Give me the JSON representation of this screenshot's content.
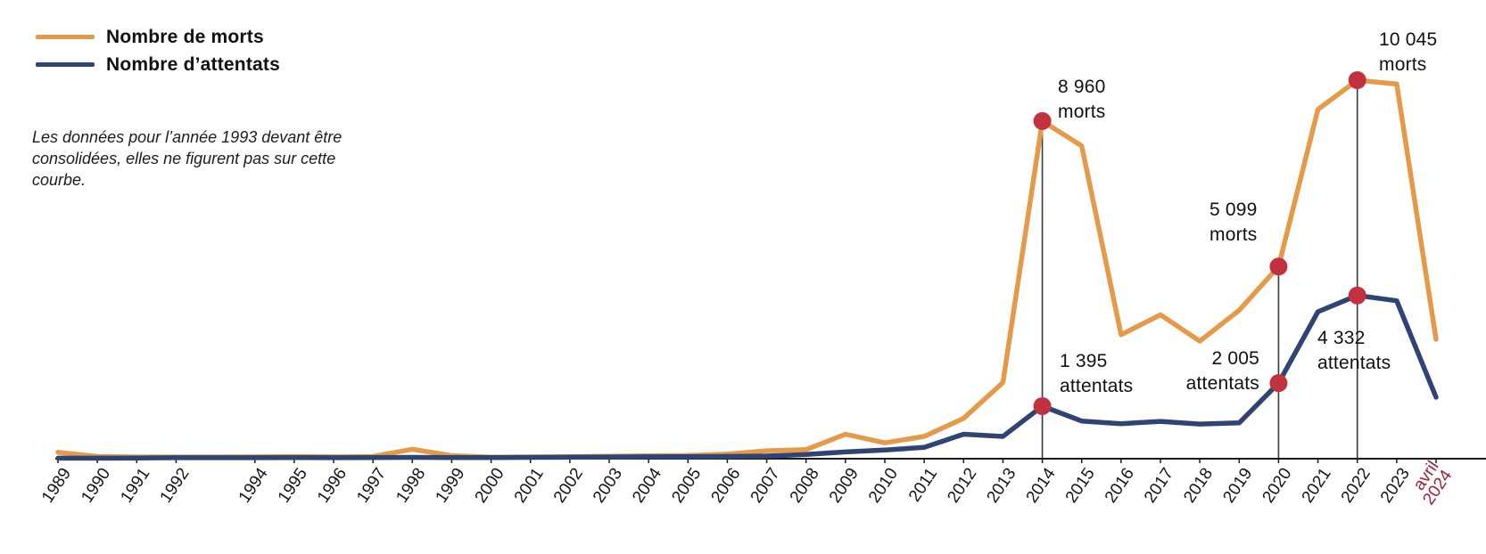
{
  "legend": {
    "items": [
      {
        "label": "Nombre de morts",
        "color": "#e59a47"
      },
      {
        "label": "Nombre d’attentats",
        "color": "#2f4474"
      }
    ]
  },
  "note": "Les données pour l’année 1993 devant être consolidées, elles ne figurent pas sur cette courbe.",
  "chart_data": {
    "type": "line",
    "title": "",
    "xlabel": "",
    "ylabel": "",
    "ylim": [
      0,
      10500
    ],
    "grid": false,
    "legend_position": "top-left",
    "x_labels": [
      "1989",
      "1990",
      "1991",
      "1992",
      "",
      "1994",
      "1995",
      "1996",
      "1997",
      "1998",
      "1999",
      "2000",
      "2001",
      "2002",
      "2003",
      "2004",
      "2005",
      "2006",
      "2007",
      "2008",
      "2009",
      "2010",
      "2011",
      "2012",
      "2013",
      "2014",
      "2015",
      "2016",
      "2017",
      "2018",
      "2019",
      "2020",
      "2021",
      "2022",
      "2023",
      "avril 2024"
    ],
    "missing_year": "1993",
    "last_label": {
      "line1": "avril",
      "line2": "2024",
      "color": "#a01f33"
    },
    "series": [
      {
        "name": "Nombre de morts",
        "color": "#e59a47",
        "values": [
          170,
          60,
          45,
          45,
          null,
          50,
          60,
          50,
          60,
          250,
          80,
          40,
          45,
          55,
          65,
          75,
          85,
          120,
          210,
          240,
          650,
          420,
          590,
          1070,
          2020,
          8960,
          8300,
          3290,
          3820,
          3120,
          3940,
          5099,
          9270,
          10045,
          9940,
          3170
        ]
      },
      {
        "name": "Nombre d’attentats",
        "color": "#2f4474",
        "values": [
          15,
          15,
          20,
          25,
          null,
          25,
          30,
          25,
          30,
          35,
          30,
          30,
          35,
          40,
          45,
          50,
          55,
          60,
          70,
          110,
          180,
          230,
          300,
          650,
          590,
          1395,
          1000,
          930,
          990,
          920,
          950,
          2005,
          3900,
          4332,
          4190,
          1630
        ]
      }
    ],
    "marker_color": "#c1323e",
    "reference_line_color": "#3a3a3a",
    "axis_color": "#1a1a1a",
    "annotations": [
      {
        "series": "morts",
        "year": "2014",
        "value": "8 960",
        "unit": "morts"
      },
      {
        "series": "morts",
        "year": "2020",
        "value": "5 099",
        "unit": "morts"
      },
      {
        "series": "morts",
        "year": "2022",
        "value": "10 045",
        "unit": "morts"
      },
      {
        "series": "attentats",
        "year": "2014",
        "value": "1 395",
        "unit": "attentats"
      },
      {
        "series": "attentats",
        "year": "2020",
        "value": "2 005",
        "unit": "attentats"
      },
      {
        "series": "attentats",
        "year": "2022",
        "value": "4 332",
        "unit": "attentats"
      }
    ]
  }
}
